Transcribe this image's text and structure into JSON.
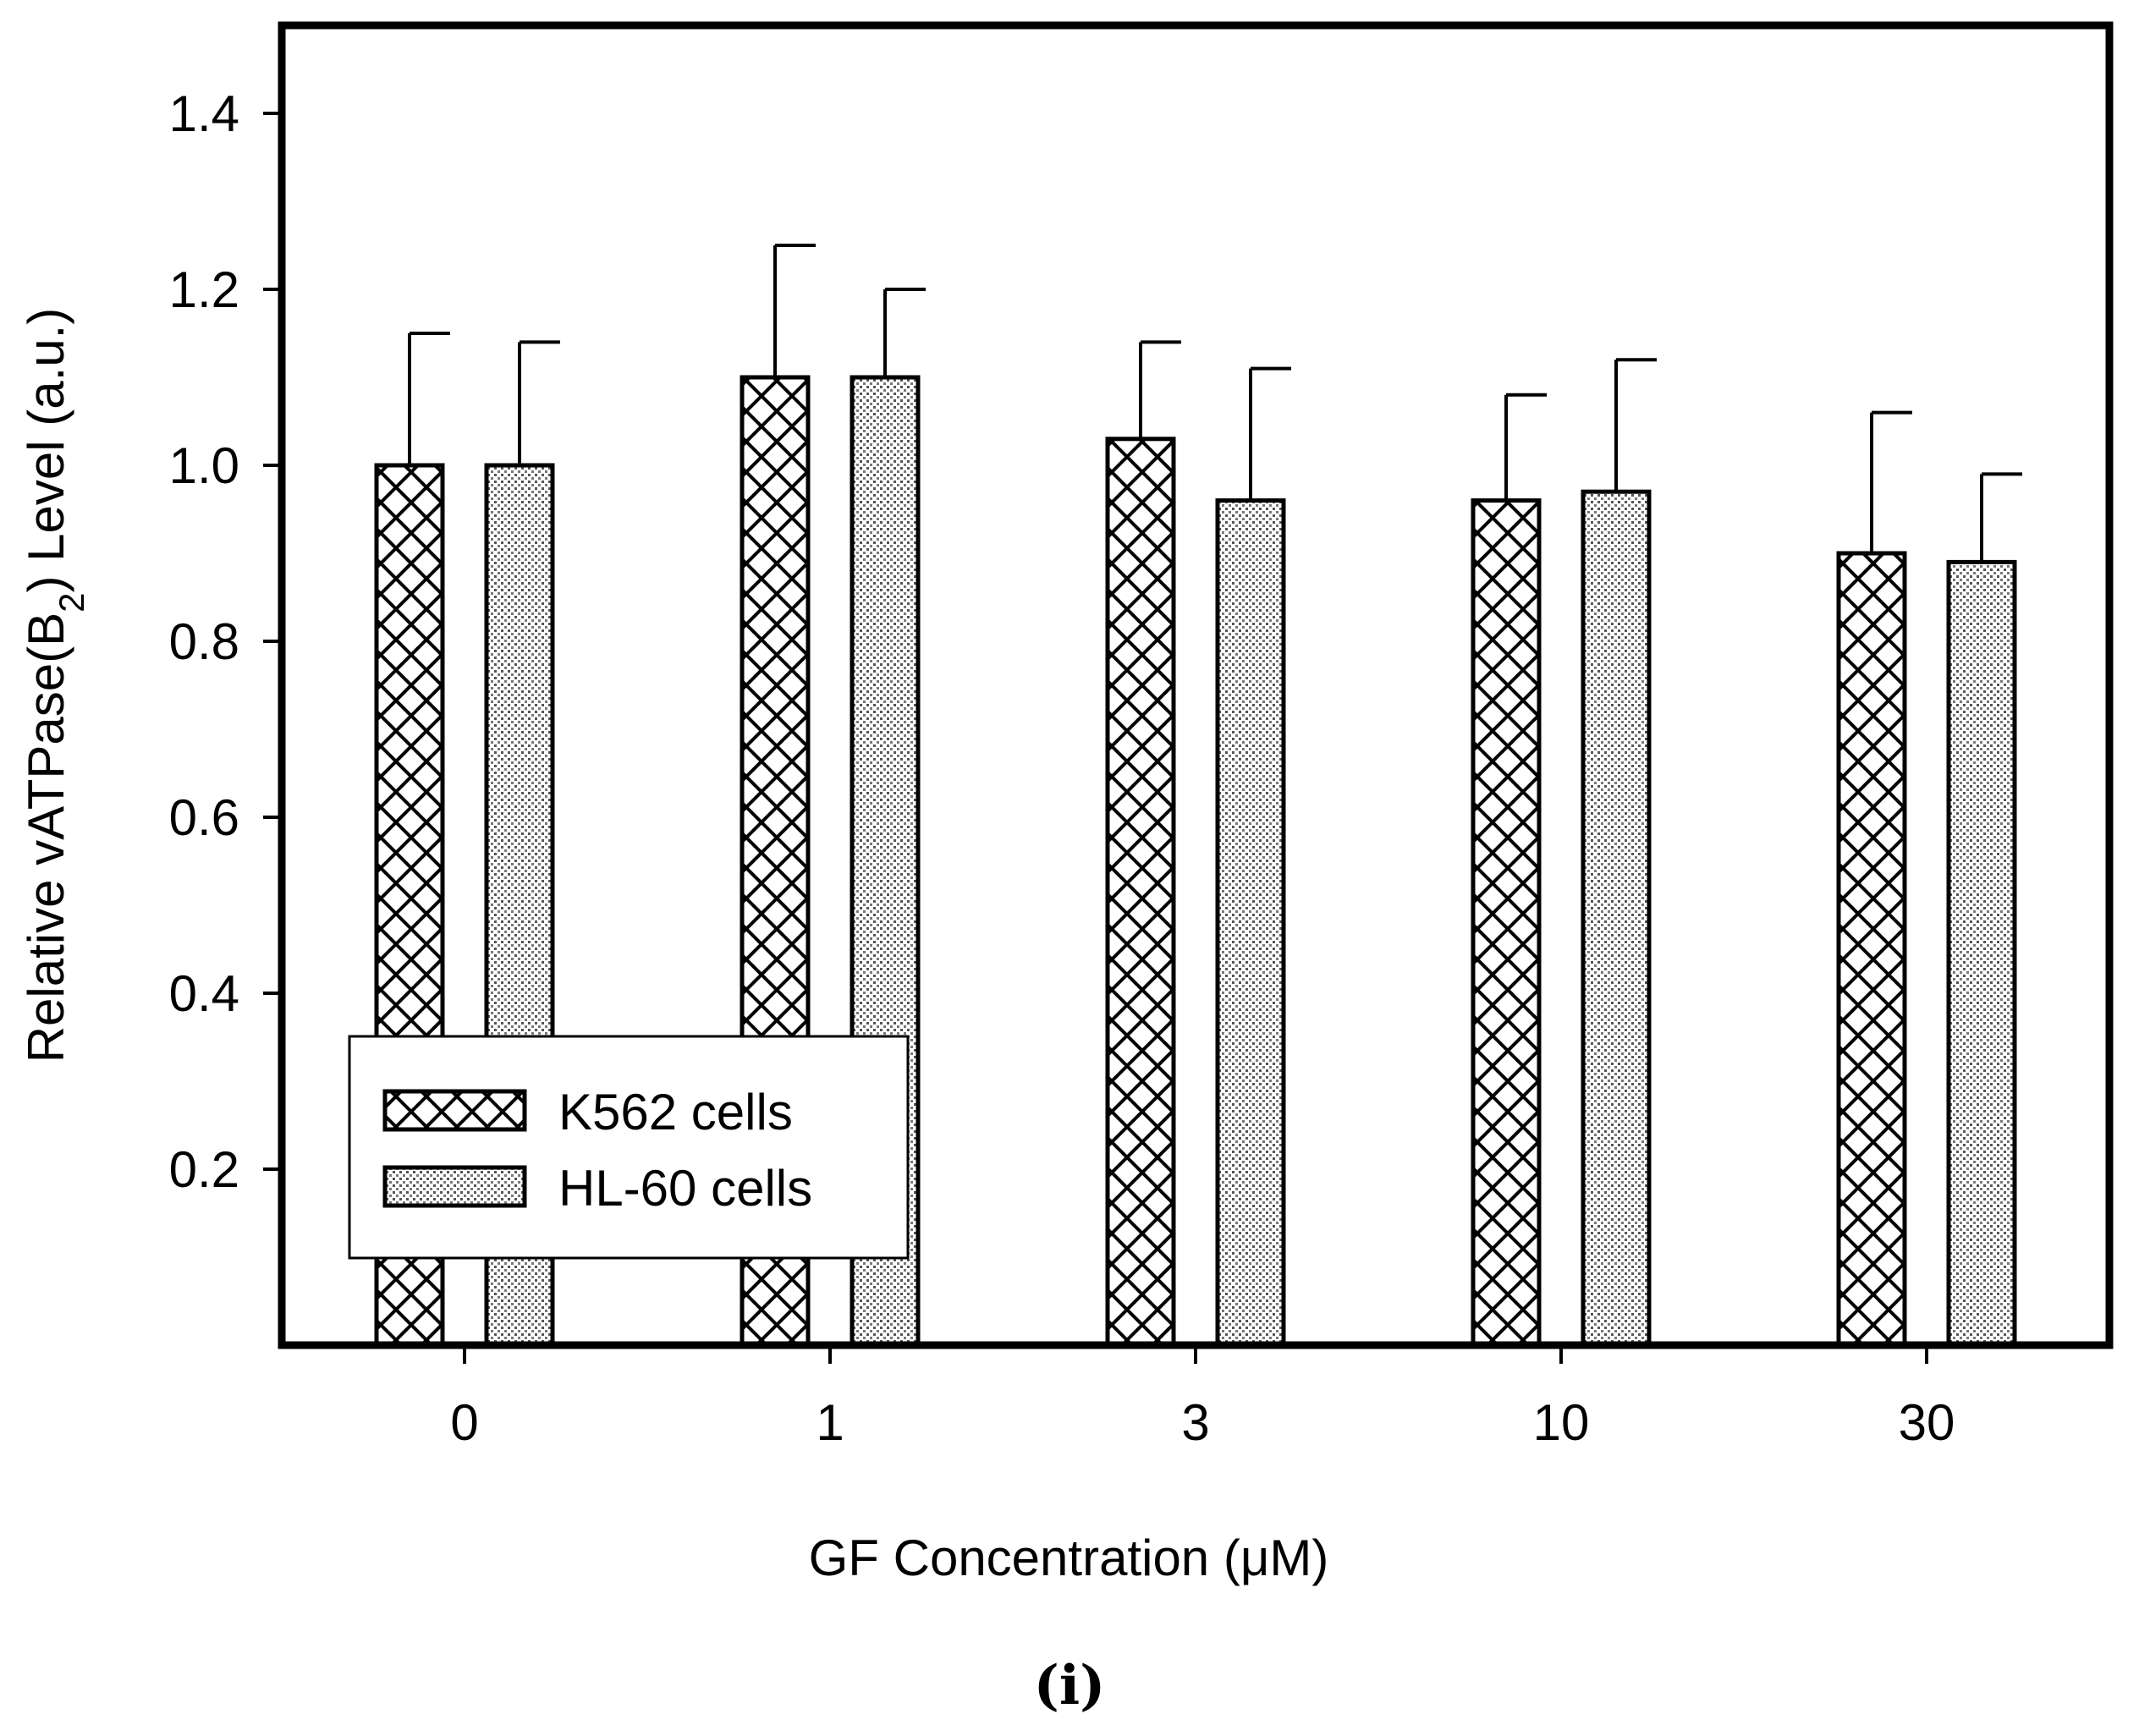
{
  "chart_data": {
    "type": "bar",
    "categories": [
      "0",
      "1",
      "3",
      "10",
      "30"
    ],
    "series": [
      {
        "name": "K562 cells",
        "pattern": "crosshatch",
        "values": [
          1.0,
          1.1,
          1.03,
          0.96,
          0.9
        ],
        "errors": [
          0.15,
          0.15,
          0.11,
          0.12,
          0.16
        ]
      },
      {
        "name": "HL-60 cells",
        "pattern": "dotted",
        "values": [
          1.0,
          1.1,
          0.96,
          0.97,
          0.89
        ],
        "errors": [
          0.14,
          0.1,
          0.15,
          0.15,
          0.1
        ]
      }
    ],
    "xlabel": "GF Concentration (μM)",
    "ylabel_main": "Relative vATPase(B",
    "ylabel_sub": "2",
    "ylabel_rest": ") Level (a.u.)",
    "ylim": [
      0.0,
      1.5
    ],
    "yticks": [
      "0.2",
      "0.4",
      "0.6",
      "0.8",
      "1.0",
      "1.2",
      "1.4"
    ],
    "legend_position": "lower-left",
    "colors": {
      "bar_fill": "#ffffff",
      "stroke": "#000000"
    }
  },
  "panel_label": "(i)"
}
